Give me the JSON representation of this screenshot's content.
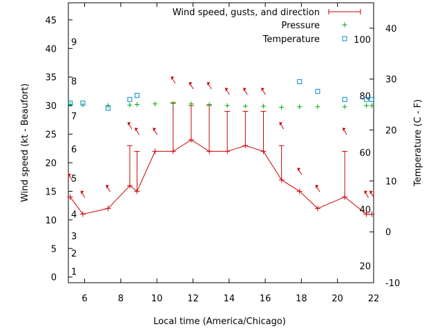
{
  "chart_data": {
    "type": "line",
    "xlabel": "Local time (America/Chicago)",
    "ylabel_left": "Wind speed (kt - Beaufort)",
    "ylabel_right": "Temperature (C - F)",
    "xlim": [
      5.1,
      22.0
    ],
    "ylim_left": [
      -1,
      48
    ],
    "ylim_right": [
      -10,
      45
    ],
    "x_ticks": [
      6,
      8,
      10,
      12,
      14,
      16,
      18,
      20,
      22
    ],
    "x_tick_labels": [
      "6",
      "8",
      "10",
      "12",
      "14",
      "16",
      "18",
      "20",
      "22"
    ],
    "y_left_ticks": [
      0,
      5,
      10,
      15,
      20,
      25,
      30,
      35,
      40,
      45
    ],
    "y_left_tick_labels": [
      "0",
      "5",
      "10",
      "15",
      "20",
      "25",
      "30",
      "35",
      "40",
      "45"
    ],
    "y_right_ticks": [
      -10,
      0,
      10,
      20,
      30,
      40
    ],
    "y_right_tick_labels": [
      "-10",
      "0",
      "10",
      "20",
      "30",
      "40"
    ],
    "beaufort_labels": [
      {
        "text": "1",
        "y": 1
      },
      {
        "text": "2",
        "y": 4.2
      },
      {
        "text": "3",
        "y": 7.2
      },
      {
        "text": "4",
        "y": 11
      },
      {
        "text": "5",
        "y": 17.3
      },
      {
        "text": "6",
        "y": 22.4
      },
      {
        "text": "7",
        "y": 28.2
      },
      {
        "text": "8",
        "y": 34.3
      },
      {
        "text": "9",
        "y": 41.2
      }
    ],
    "fahrenheit_labels": [
      {
        "text": "20",
        "y": -6.7
      },
      {
        "text": "40",
        "y": 4.4
      },
      {
        "text": "60",
        "y": 15.6
      },
      {
        "text": "80",
        "y": 26.7
      },
      {
        "text": "100",
        "y": 37.8
      }
    ],
    "series": [
      {
        "name": "Wind speed, gusts, and direction",
        "color": "#cc0000",
        "points": [
          {
            "x": 5.2,
            "y": 14,
            "gust": 14
          },
          {
            "x": 5.9,
            "y": 11,
            "gust": 11
          },
          {
            "x": 7.3,
            "y": 12,
            "gust": 12
          },
          {
            "x": 8.5,
            "y": 16,
            "gust": 23
          },
          {
            "x": 8.9,
            "y": 15,
            "gust": 22
          },
          {
            "x": 9.9,
            "y": 22,
            "gust": 22
          },
          {
            "x": 10.9,
            "y": 22,
            "gust": 30.5
          },
          {
            "x": 11.9,
            "y": 24,
            "gust": 30
          },
          {
            "x": 12.9,
            "y": 22,
            "gust": 30
          },
          {
            "x": 13.9,
            "y": 22,
            "gust": 29
          },
          {
            "x": 14.9,
            "y": 23,
            "gust": 29
          },
          {
            "x": 15.9,
            "y": 22,
            "gust": 29
          },
          {
            "x": 16.9,
            "y": 17,
            "gust": 23
          },
          {
            "x": 17.9,
            "y": 15,
            "gust": 15
          },
          {
            "x": 18.9,
            "y": 12,
            "gust": 12
          },
          {
            "x": 20.4,
            "y": 14,
            "gust": 22
          },
          {
            "x": 21.6,
            "y": 11,
            "gust": 11
          },
          {
            "x": 21.9,
            "y": 11,
            "gust": 11
          }
        ],
        "direction_arrows": [
          {
            "x": 5.2,
            "y": 17.5
          },
          {
            "x": 5.9,
            "y": 14.5
          },
          {
            "x": 7.3,
            "y": 15.5
          },
          {
            "x": 8.5,
            "y": 26.5
          },
          {
            "x": 8.9,
            "y": 25.5
          },
          {
            "x": 9.9,
            "y": 25.5
          },
          {
            "x": 10.9,
            "y": 34.5
          },
          {
            "x": 11.9,
            "y": 33.5
          },
          {
            "x": 12.9,
            "y": 33.5
          },
          {
            "x": 13.9,
            "y": 32.5
          },
          {
            "x": 14.9,
            "y": 32.5
          },
          {
            "x": 15.9,
            "y": 32.5
          },
          {
            "x": 16.9,
            "y": 26.5
          },
          {
            "x": 17.9,
            "y": 18.5
          },
          {
            "x": 18.9,
            "y": 15.5
          },
          {
            "x": 20.4,
            "y": 25.5
          },
          {
            "x": 21.6,
            "y": 14.5
          },
          {
            "x": 21.9,
            "y": 14.5
          }
        ]
      },
      {
        "name": "Pressure",
        "color": "#00aa00",
        "axis": "left",
        "points": [
          {
            "x": 5.2,
            "y": 30.2
          },
          {
            "x": 5.9,
            "y": 30.1
          },
          {
            "x": 7.3,
            "y": 30.0
          },
          {
            "x": 8.5,
            "y": 30.1
          },
          {
            "x": 8.9,
            "y": 30.2
          },
          {
            "x": 9.9,
            "y": 30.3
          },
          {
            "x": 10.9,
            "y": 30.4
          },
          {
            "x": 11.9,
            "y": 30.3
          },
          {
            "x": 12.9,
            "y": 30.2
          },
          {
            "x": 13.9,
            "y": 30.0
          },
          {
            "x": 14.9,
            "y": 29.9
          },
          {
            "x": 15.9,
            "y": 29.9
          },
          {
            "x": 16.9,
            "y": 29.7
          },
          {
            "x": 17.9,
            "y": 29.8
          },
          {
            "x": 18.9,
            "y": 29.8
          },
          {
            "x": 20.4,
            "y": 29.8
          },
          {
            "x": 21.6,
            "y": 30.0
          },
          {
            "x": 21.9,
            "y": 30.0
          }
        ]
      },
      {
        "name": "Temperature",
        "color": "#0088cc",
        "axis": "right",
        "points": [
          {
            "x": 5.2,
            "y": 25.3
          },
          {
            "x": 5.9,
            "y": 25.3
          },
          {
            "x": 7.3,
            "y": 24.3
          },
          {
            "x": 8.5,
            "y": 26.0
          },
          {
            "x": 8.9,
            "y": 26.8
          },
          {
            "x": 17.9,
            "y": 29.5
          },
          {
            "x": 18.9,
            "y": 27.6
          },
          {
            "x": 20.4,
            "y": 26.0
          },
          {
            "x": 21.6,
            "y": 26.0
          },
          {
            "x": 21.9,
            "y": 26.0
          }
        ]
      }
    ],
    "legend_position": "top-right",
    "grid": false
  }
}
